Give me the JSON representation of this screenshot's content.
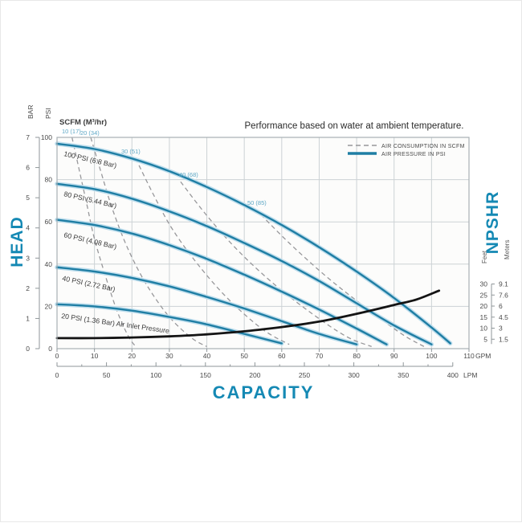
{
  "legend": {
    "items": [
      {
        "label": "AIR CONSUMPTION IN SCFM",
        "style": "dashed",
        "color": "#97979a"
      },
      {
        "label": "AIR PRESSURE IN PSI",
        "style": "solid",
        "color": "#1f7ea4"
      }
    ]
  },
  "axis_titles": {
    "head": "HEAD",
    "capacity": "CAPACITY",
    "npshr": "NPSHR",
    "bar": "BAR",
    "psi": "PSI",
    "feet": "Feet",
    "meters": "Meters",
    "scfm_header": "SCFM (M³/hr)",
    "gpm_suffix": "GPM",
    "lpm_suffix": "LPM"
  },
  "colors": {
    "curve_blue": "#1f7ea4",
    "curve_blue_halo": "#bfdeed",
    "heading_blue": "#1589b4",
    "dashed_gray": "#98989b",
    "npshr_black": "#141414",
    "grid": "#ccd2d5",
    "scfm_label_blue": "#5fa8c6"
  },
  "chart_data": {
    "type": "line",
    "title": "Performance based on water at ambient temperature.",
    "x_axis": {
      "label": "CAPACITY",
      "gpm": {
        "min": 0,
        "max": 110,
        "tick_step": 10,
        "unit": "GPM"
      },
      "lpm": {
        "min": 0,
        "max": 400,
        "tick_step": 50,
        "minor_step": 25,
        "unit": "LPM",
        "gpm_per_lpm": 0.26417
      }
    },
    "y_axis": {
      "label": "HEAD",
      "psi": {
        "min": 0,
        "max": 100,
        "tick_step": 20,
        "unit": "PSI"
      },
      "bar": {
        "min": 0,
        "max": 7,
        "tick_step": 1,
        "unit": "BAR"
      }
    },
    "npshr_axis": {
      "label": "NPSHR",
      "feet_ticks": [
        30,
        25,
        20,
        15,
        10,
        5
      ],
      "meters_ticks": [
        "9.1",
        "7.6",
        "6",
        "4.5",
        "3",
        "1.5"
      ]
    },
    "air_pressure_curves": [
      {
        "label": "100 PSI (6.8 Bar)",
        "points_gpm_psi": [
          [
            0,
            97
          ],
          [
            10,
            94.5
          ],
          [
            20,
            90
          ],
          [
            30,
            84
          ],
          [
            40,
            76.5
          ],
          [
            50,
            68
          ],
          [
            60,
            58.5
          ],
          [
            70,
            48
          ],
          [
            80,
            36.5
          ],
          [
            90,
            24
          ],
          [
            100,
            10
          ],
          [
            105,
            2.5
          ]
        ]
      },
      {
        "label": "80 PSI (5.44 Bar)",
        "points_gpm_psi": [
          [
            0,
            78
          ],
          [
            10,
            75.5
          ],
          [
            20,
            71
          ],
          [
            30,
            65
          ],
          [
            40,
            58
          ],
          [
            50,
            50
          ],
          [
            60,
            41.5
          ],
          [
            70,
            32
          ],
          [
            80,
            21.5
          ],
          [
            90,
            11
          ],
          [
            100,
            2
          ]
        ]
      },
      {
        "label": "60 PSI (4.08 Bar)",
        "points_gpm_psi": [
          [
            0,
            61
          ],
          [
            10,
            58.5
          ],
          [
            20,
            54.5
          ],
          [
            30,
            49
          ],
          [
            40,
            42.5
          ],
          [
            50,
            35
          ],
          [
            60,
            27
          ],
          [
            70,
            18.5
          ],
          [
            80,
            9.5
          ],
          [
            88,
            2
          ]
        ]
      },
      {
        "label": "40 PSI (2.72 Bar)",
        "points_gpm_psi": [
          [
            0,
            38.5
          ],
          [
            10,
            36.5
          ],
          [
            20,
            33.5
          ],
          [
            30,
            29.5
          ],
          [
            40,
            24.5
          ],
          [
            50,
            19
          ],
          [
            60,
            13
          ],
          [
            70,
            7
          ],
          [
            80,
            2
          ]
        ]
      },
      {
        "label": "20 PSI (1.36 Bar) Air Inlet Pressure",
        "points_gpm_psi": [
          [
            0,
            21
          ],
          [
            10,
            20
          ],
          [
            20,
            18
          ],
          [
            30,
            15
          ],
          [
            40,
            11.5
          ],
          [
            50,
            7
          ],
          [
            60,
            2.5
          ]
        ]
      }
    ],
    "air_consumption_curves": [
      {
        "label": "10 (17)",
        "scfm": 10,
        "points_gpm_psi": [
          [
            4,
            100
          ],
          [
            6,
            84
          ],
          [
            8,
            68
          ],
          [
            10,
            52
          ],
          [
            13,
            34
          ],
          [
            16,
            18
          ],
          [
            19,
            6
          ],
          [
            21,
            1
          ]
        ]
      },
      {
        "label": "20 (34)",
        "scfm": 20,
        "points_gpm_psi": [
          [
            9,
            100
          ],
          [
            12,
            82
          ],
          [
            15,
            65
          ],
          [
            19,
            47
          ],
          [
            24,
            30
          ],
          [
            30,
            15
          ],
          [
            36,
            5
          ],
          [
            40,
            1
          ]
        ]
      },
      {
        "label": "30 (51)",
        "scfm": 30,
        "points_gpm_psi": [
          [
            21,
            90
          ],
          [
            26,
            72
          ],
          [
            31,
            56
          ],
          [
            38,
            39
          ],
          [
            46,
            23
          ],
          [
            55,
            9
          ],
          [
            62,
            2
          ]
        ]
      },
      {
        "label": "40 (68)",
        "scfm": 40,
        "points_gpm_psi": [
          [
            33,
            79
          ],
          [
            40,
            63
          ],
          [
            48,
            47
          ],
          [
            57,
            32
          ],
          [
            67,
            18
          ],
          [
            77,
            6
          ],
          [
            84,
            1
          ]
        ]
      },
      {
        "label": "50 (85)",
        "scfm": 50,
        "points_gpm_psi": [
          [
            53,
            66
          ],
          [
            62,
            50
          ],
          [
            72,
            34
          ],
          [
            82,
            20
          ],
          [
            92,
            7
          ],
          [
            98,
            1
          ]
        ]
      }
    ],
    "npshr_curve": {
      "name": "NPSHR",
      "points_gpm_feet": [
        [
          0,
          5.5
        ],
        [
          10,
          5.5
        ],
        [
          20,
          5.8
        ],
        [
          30,
          6.3
        ],
        [
          40,
          7.2
        ],
        [
          50,
          8.6
        ],
        [
          60,
          10.5
        ],
        [
          70,
          13
        ],
        [
          80,
          16.5
        ],
        [
          90,
          20.5
        ],
        [
          96,
          23
        ],
        [
          102,
          27
        ]
      ]
    }
  }
}
